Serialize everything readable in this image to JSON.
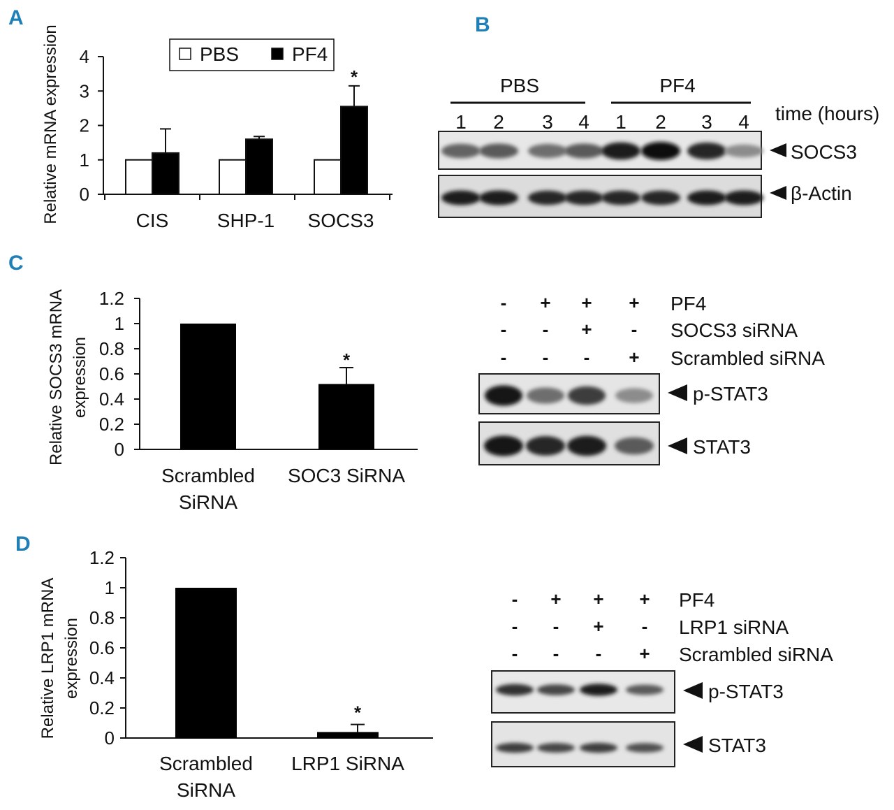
{
  "panels": {
    "a": {
      "letter": "A"
    },
    "b": {
      "letter": "B"
    },
    "c": {
      "letter": "C"
    },
    "d": {
      "letter": "D"
    }
  },
  "chart_data": [
    {
      "panel": "A",
      "type": "bar",
      "categories": [
        "CIS",
        "SHP-1",
        "SOCS3"
      ],
      "series": [
        {
          "name": "PBS",
          "values": [
            1,
            1,
            1
          ],
          "color": "#ffffff"
        },
        {
          "name": "PF4",
          "values": [
            1.2,
            1.6,
            2.55
          ],
          "errors": [
            0.7,
            0.08,
            0.6
          ],
          "color": "#000000"
        }
      ],
      "yticks": [
        "0",
        "1",
        "2",
        "3",
        "4"
      ],
      "ylim": [
        0,
        4
      ],
      "ylabel": "Relative mRNA expression",
      "annotations": [
        {
          "category": "SOCS3",
          "series": "PF4",
          "text": "*"
        }
      ],
      "legend": "top-center",
      "grid": false
    },
    {
      "panel": "C",
      "type": "bar",
      "categories": [
        "Scrambled SiRNA",
        "SOC3 SiRNA"
      ],
      "category_lines": [
        [
          "Scrambled",
          "SiRNA"
        ],
        [
          "SOC3 SiRNA"
        ]
      ],
      "values": [
        1,
        0.52
      ],
      "errors": [
        0,
        0.13
      ],
      "yticks": [
        "0",
        "0.2",
        "0.4",
        "0.6",
        "0.8",
        "1",
        "1.2"
      ],
      "ylim": [
        0,
        1.2
      ],
      "ylabel_lines": [
        "Relative SOCS3 mRNA",
        "expression"
      ],
      "annotations": [
        {
          "category": "SOC3 SiRNA",
          "text": "*"
        }
      ],
      "grid": false
    },
    {
      "panel": "D",
      "type": "bar",
      "categories": [
        "Scrambled SiRNA",
        "LRP1 SiRNA"
      ],
      "category_lines": [
        [
          "Scrambled",
          "SiRNA"
        ],
        [
          "LRP1 SiRNA"
        ]
      ],
      "values": [
        1,
        0.04
      ],
      "errors": [
        0,
        0.05
      ],
      "yticks": [
        "0",
        "0.2",
        "0.4",
        "0.6",
        "0.8",
        "1",
        "1.2"
      ],
      "ylim": [
        0,
        1.2
      ],
      "ylabel_lines": [
        "Relative LRP1 mRNA",
        "expression"
      ],
      "annotations": [
        {
          "category": "LRP1 SiRNA",
          "text": "*"
        }
      ],
      "grid": false
    }
  ],
  "blots": {
    "b": {
      "group_labels": [
        "PBS",
        "PF4"
      ],
      "lanes": [
        "1",
        "2",
        "3",
        "4",
        "1",
        "2",
        "3",
        "4"
      ],
      "time_label": "time (hours)",
      "rows": [
        {
          "label": "SOCS3",
          "intensities": [
            0.55,
            0.6,
            0.5,
            0.6,
            0.9,
            1.0,
            0.85,
            0.35
          ]
        },
        {
          "label": "β-Actin",
          "intensities": [
            0.9,
            0.9,
            0.85,
            0.85,
            0.85,
            0.85,
            0.9,
            0.9
          ]
        }
      ]
    },
    "c": {
      "conditions": [
        {
          "label": "PF4",
          "signs": [
            "-",
            "+",
            "+",
            "+"
          ]
        },
        {
          "label": "SOCS3 siRNA",
          "signs": [
            "-",
            "-",
            "+",
            "-"
          ]
        },
        {
          "label": "Scrambled siRNA",
          "signs": [
            "-",
            "-",
            "-",
            "+"
          ]
        }
      ],
      "rows": [
        {
          "label": "p-STAT3",
          "intensities": [
            0.95,
            0.5,
            0.75,
            0.35
          ]
        },
        {
          "label": "STAT3",
          "intensities": [
            0.95,
            0.85,
            0.9,
            0.6
          ]
        }
      ]
    },
    "d": {
      "conditions": [
        {
          "label": "PF4",
          "signs": [
            "-",
            "+",
            "+",
            "+"
          ]
        },
        {
          "label": "LRP1 siRNA",
          "signs": [
            "-",
            "-",
            "+",
            "-"
          ]
        },
        {
          "label": "Scrambled siRNA",
          "signs": [
            "-",
            "-",
            "-",
            "+"
          ]
        }
      ],
      "rows": [
        {
          "label": "p-STAT3",
          "intensities": [
            0.8,
            0.7,
            0.9,
            0.6
          ]
        },
        {
          "label": "STAT3",
          "intensities": [
            0.75,
            0.7,
            0.75,
            0.65
          ]
        }
      ]
    }
  }
}
